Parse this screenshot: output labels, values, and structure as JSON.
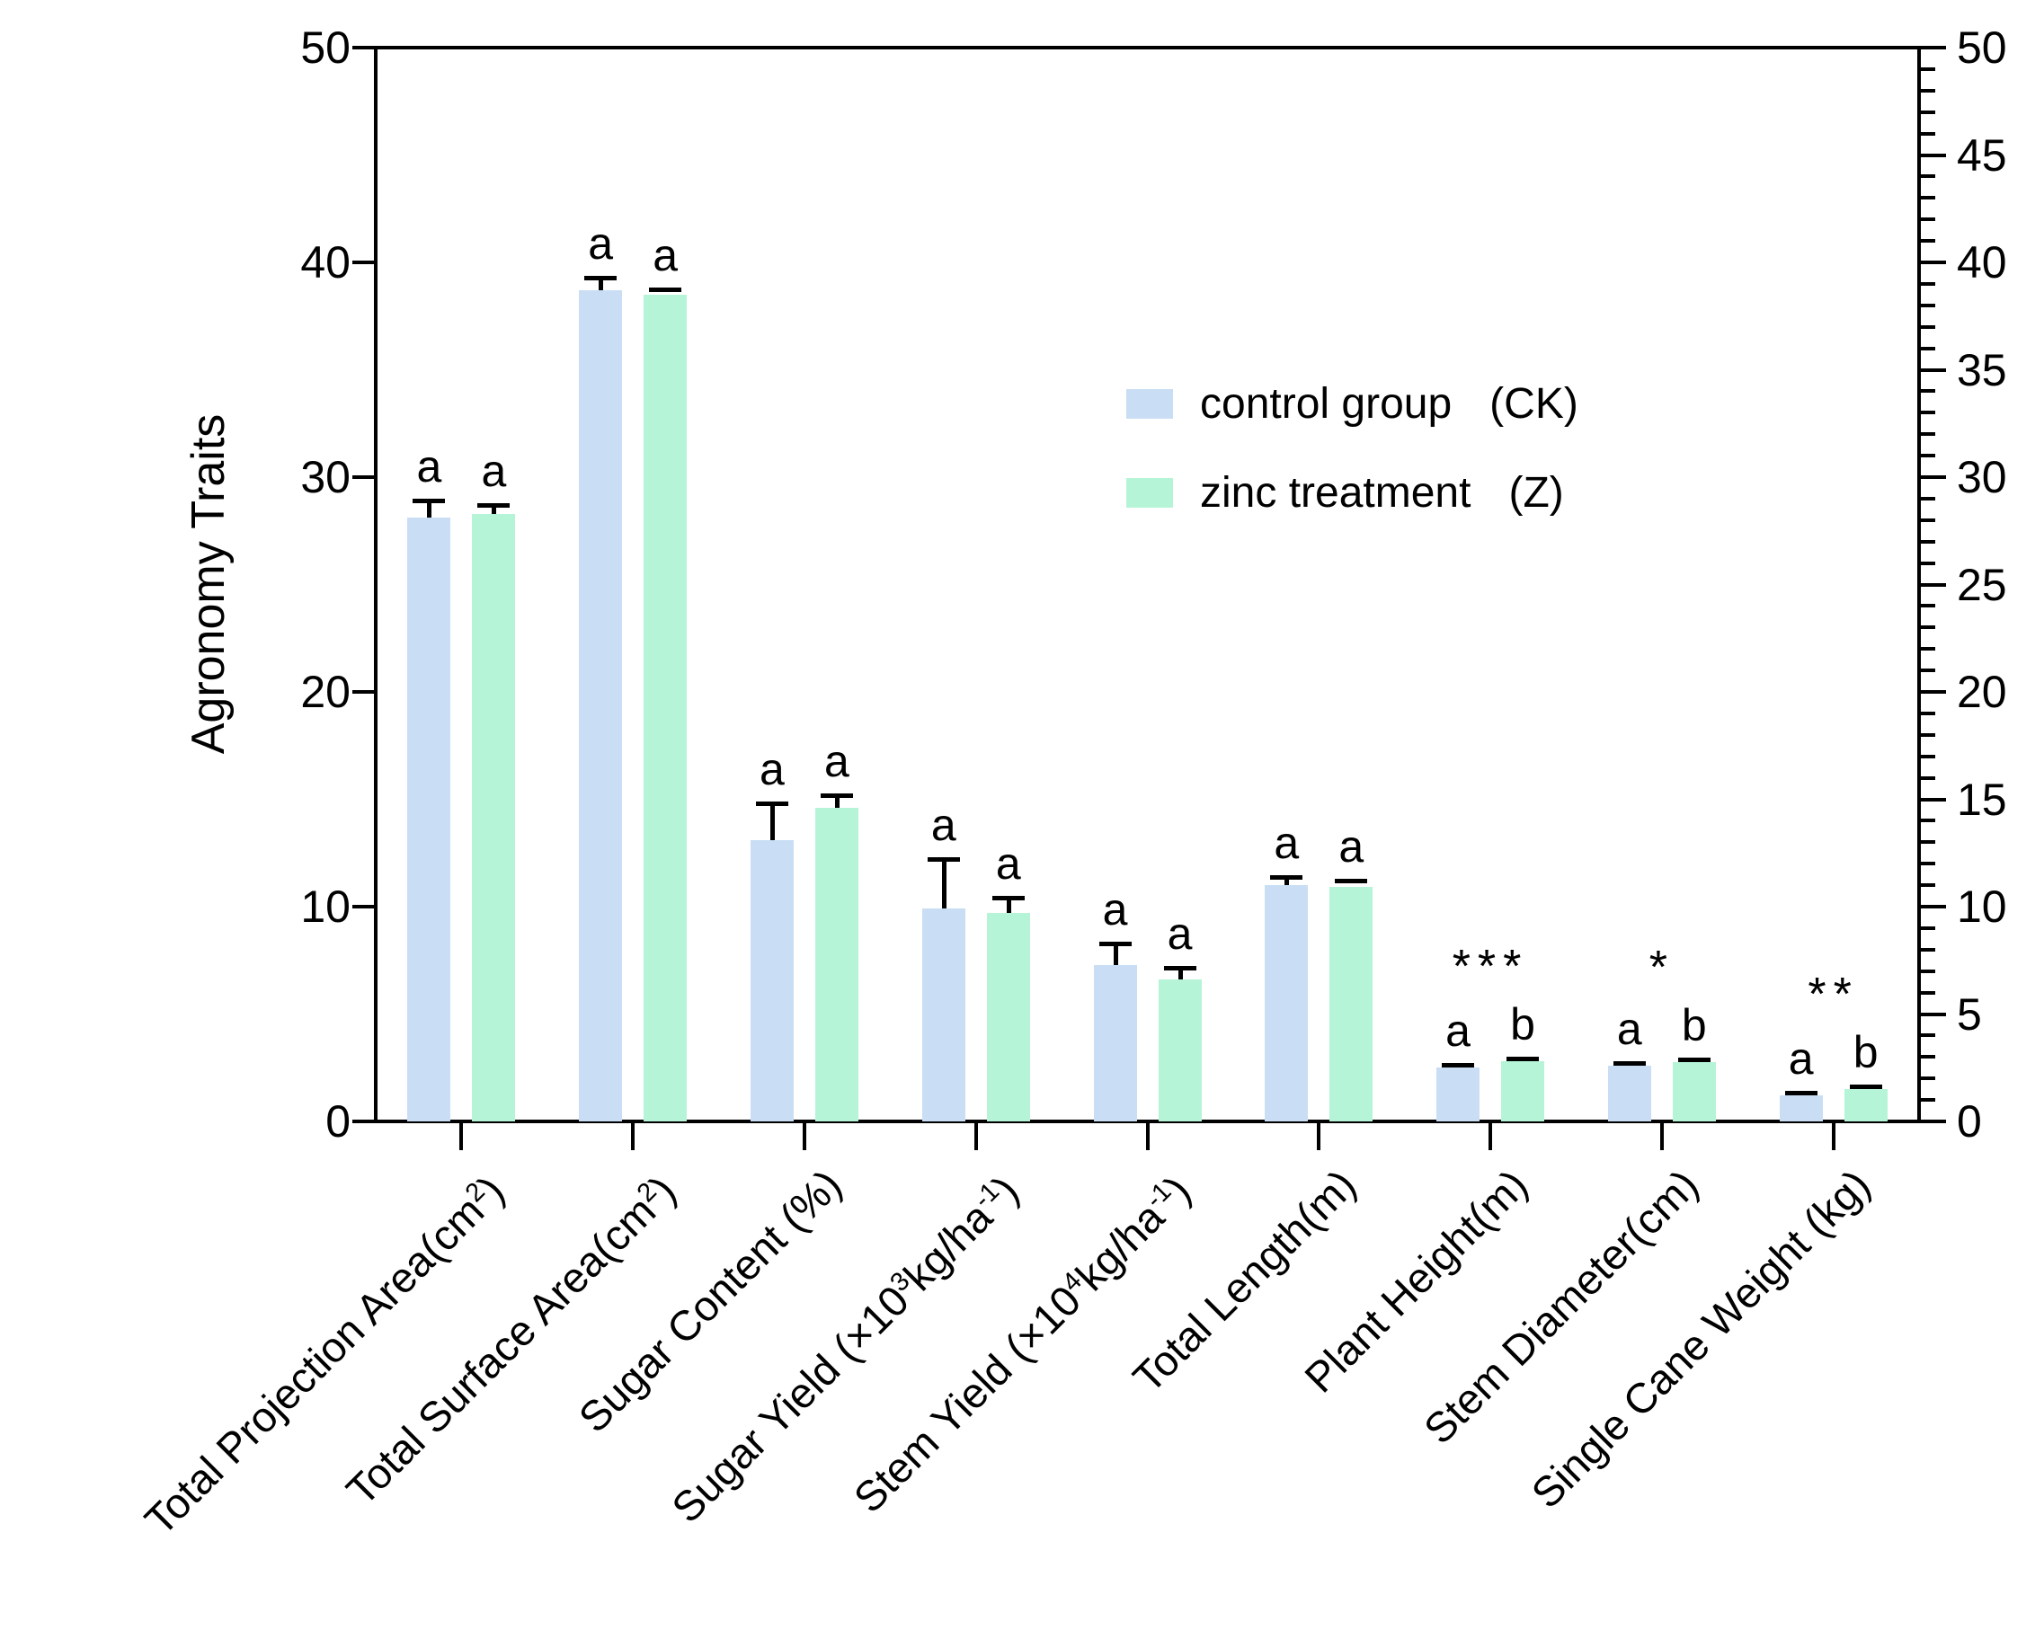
{
  "figure": {
    "ylabel": "Agronomy Traits",
    "background_color": "#ffffff",
    "axis_color": "#000000"
  },
  "legend": [
    {
      "label": "control group",
      "code": "(CK)",
      "color": "#C9DEF5"
    },
    {
      "label": "zinc treatment",
      "code": "(Z)",
      "color": "#B6F4D8"
    }
  ],
  "chart_data": {
    "type": "bar",
    "title": "",
    "xlabel": "",
    "ylabel": "Agronomy Traits",
    "ylim": [
      0,
      50
    ],
    "grid": false,
    "legend_position": "upper right inside plot",
    "left_axis_ticks": [
      0,
      10,
      20,
      30,
      40,
      50
    ],
    "right_axis_ticks": [
      0,
      5,
      10,
      15,
      20,
      25,
      30,
      35,
      40,
      45,
      50
    ],
    "right_axis_minor_tick_step": 1,
    "categories": [
      "Total Projection Area(cm^2^)",
      "Total Surface Area(cm^2^)",
      "Sugar Content (%)",
      "Sugar Yield (×10^3^kg/ha^-1^)",
      "Stem Yield (×10^4^kg/ha^-1^)",
      "Total Length(m)",
      "Plant Height(m)",
      "Stem Diameter(cm)",
      "Single Cane Weight (kg)"
    ],
    "series": [
      {
        "key": "ck",
        "name": "control group (CK)",
        "color": "#C9DEF5",
        "values": [
          28.1,
          38.7,
          13.1,
          9.9,
          7.3,
          11.0,
          2.5,
          2.6,
          1.2
        ],
        "errors": [
          0.8,
          0.6,
          1.7,
          2.3,
          1.0,
          0.4,
          0.12,
          0.12,
          0.15
        ],
        "letters": [
          "a",
          "a",
          "a",
          "a",
          "a",
          "a",
          "a",
          "a",
          "a"
        ]
      },
      {
        "key": "z",
        "name": "zinc treatment (Z)",
        "color": "#B6F4D8",
        "values": [
          28.3,
          38.5,
          14.6,
          9.7,
          6.6,
          10.9,
          2.8,
          2.75,
          1.5
        ],
        "errors": [
          0.4,
          0.25,
          0.6,
          0.7,
          0.55,
          0.3,
          0.12,
          0.12,
          0.12
        ],
        "letters": [
          "a",
          "a",
          "a",
          "a",
          "a",
          "a",
          "b",
          "b",
          "b"
        ]
      }
    ],
    "significance_markers": [
      "",
      "",
      "",
      "",
      "",
      "",
      "***",
      "*",
      "**"
    ]
  }
}
